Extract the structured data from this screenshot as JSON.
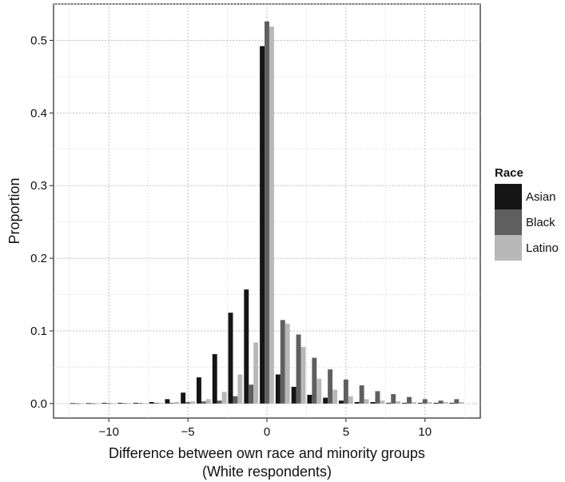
{
  "chart_data": {
    "type": "bar",
    "title": "",
    "xlabel": "Difference between own race and minority groups",
    "xlabel_line2": "(White respondents)",
    "ylabel": "Proportion",
    "xlim": [
      -13.5,
      13.5
    ],
    "ylim": [
      -0.02,
      0.55
    ],
    "x_ticks": [
      -10,
      -5,
      0,
      5,
      10
    ],
    "x_tick_labels": [
      "−10",
      "−5",
      "0",
      "5",
      "10"
    ],
    "y_ticks": [
      0.0,
      0.1,
      0.2,
      0.3,
      0.4,
      0.5
    ],
    "y_tick_labels": [
      "0.0",
      "0.1",
      "0.2",
      "0.3",
      "0.4",
      "0.5"
    ],
    "grid": true,
    "legend": {
      "title": "Race",
      "placement": "right"
    },
    "x": [
      -12,
      -11,
      -10,
      -9,
      -8,
      -7,
      -6,
      -5,
      -4,
      -3,
      -2,
      -1,
      0,
      1,
      2,
      3,
      4,
      5,
      6,
      7,
      8,
      9,
      10,
      11,
      12
    ],
    "series": [
      {
        "name": "Asian",
        "color": "#151515",
        "values": [
          0.0005,
          0.0005,
          0.001,
          0.001,
          0.001,
          0.002,
          0.006,
          0.015,
          0.036,
          0.068,
          0.125,
          0.157,
          0.492,
          0.04,
          0.023,
          0.012,
          0.008,
          0.004,
          0.002,
          0.002,
          0.001,
          0.001,
          0.001,
          0.001,
          0.001
        ]
      },
      {
        "name": "Black",
        "color": "#5f5f5f",
        "values": [
          0.0003,
          0.0003,
          0.0005,
          0.0005,
          0.0005,
          0.001,
          0.001,
          0.002,
          0.003,
          0.004,
          0.01,
          0.026,
          0.526,
          0.115,
          0.095,
          0.063,
          0.047,
          0.033,
          0.025,
          0.017,
          0.013,
          0.009,
          0.006,
          0.004,
          0.006
        ]
      },
      {
        "name": "Latino",
        "color": "#b8b8b8",
        "values": [
          0.0003,
          0.0003,
          0.0005,
          0.0005,
          0.0005,
          0.001,
          0.002,
          0.003,
          0.006,
          0.016,
          0.04,
          0.084,
          0.519,
          0.11,
          0.078,
          0.034,
          0.019,
          0.01,
          0.006,
          0.004,
          0.003,
          0.002,
          0.002,
          0.002,
          0.002
        ]
      }
    ]
  }
}
